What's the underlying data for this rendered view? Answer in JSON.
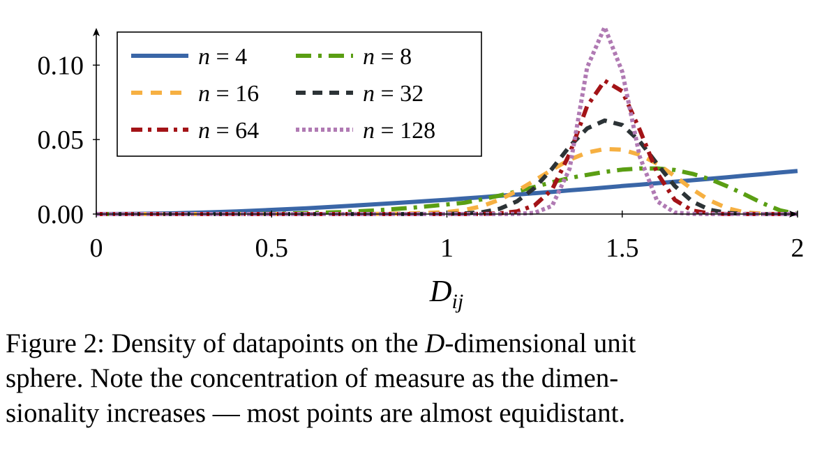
{
  "chart_data": {
    "type": "line",
    "title": "",
    "xlabel": "D",
    "xlabel_subscript": "ij",
    "ylabel": "",
    "xlim": [
      0,
      2
    ],
    "ylim": [
      0,
      0.125
    ],
    "xticks": [
      0,
      0.5,
      1,
      1.5,
      2
    ],
    "xtick_labels": [
      "0",
      "0.5",
      "1",
      "1.5",
      "2"
    ],
    "yticks": [
      0,
      0.05,
      0.1
    ],
    "ytick_labels": [
      "0.00",
      "0.05",
      "0.10"
    ],
    "grid": false,
    "legend_position": "top-left",
    "x": [
      0,
      0.1,
      0.2,
      0.3,
      0.4,
      0.5,
      0.6,
      0.7,
      0.8,
      0.9,
      1.0,
      1.05,
      1.1,
      1.15,
      1.2,
      1.25,
      1.3,
      1.35,
      1.4,
      1.45,
      1.5,
      1.55,
      1.6,
      1.65,
      1.7,
      1.75,
      1.8,
      1.85,
      1.9,
      1.95,
      2.0
    ],
    "series": [
      {
        "name": "n = 4",
        "legend_var": "n",
        "legend_val": "4",
        "color": "#3a66a7",
        "dash": "solid",
        "values": [
          0.0,
          0.0001,
          0.0004,
          0.001,
          0.0018,
          0.0028,
          0.0039,
          0.0052,
          0.0066,
          0.0081,
          0.0096,
          0.0105,
          0.0113,
          0.0122,
          0.0131,
          0.014,
          0.0149,
          0.0159,
          0.0168,
          0.0178,
          0.0188,
          0.0197,
          0.0207,
          0.0217,
          0.0227,
          0.0237,
          0.0247,
          0.0258,
          0.0268,
          0.0279,
          0.0289
        ]
      },
      {
        "name": "n = 8",
        "legend_var": "n",
        "legend_val": "8",
        "color": "#5a9e13",
        "dash": "dashdot",
        "values": [
          0.0,
          0.0,
          0.0,
          0.0,
          0.0001,
          0.0002,
          0.0006,
          0.0013,
          0.0025,
          0.0042,
          0.0064,
          0.0076,
          0.0099,
          0.0124,
          0.0152,
          0.0182,
          0.0214,
          0.0242,
          0.0263,
          0.0283,
          0.0298,
          0.0306,
          0.0306,
          0.0296,
          0.027,
          0.0234,
          0.0186,
          0.0131,
          0.0073,
          0.0025,
          0.0
        ]
      },
      {
        "name": "n = 16",
        "legend_var": "n",
        "legend_val": "16",
        "color": "#f6b042",
        "dash": "dashed",
        "values": [
          0.0,
          0.0,
          0.0,
          0.0,
          0.0,
          0.0,
          0.0,
          0.0,
          0.0001,
          0.0004,
          0.0013,
          0.0027,
          0.0053,
          0.0096,
          0.0155,
          0.0225,
          0.0298,
          0.0365,
          0.0413,
          0.0437,
          0.0432,
          0.0398,
          0.0337,
          0.0254,
          0.0166,
          0.0091,
          0.0039,
          0.0011,
          0.0002,
          0.0,
          0.0
        ]
      },
      {
        "name": "n = 32",
        "legend_var": "n",
        "legend_val": "32",
        "color": "#2c3336",
        "dash": "dashed2",
        "values": [
          0.0,
          0.0,
          0.0,
          0.0,
          0.0,
          0.0,
          0.0,
          0.0,
          0.0,
          0.0,
          0.0001,
          0.0004,
          0.0012,
          0.0035,
          0.0085,
          0.0175,
          0.0305,
          0.0455,
          0.0575,
          0.0628,
          0.0598,
          0.0488,
          0.0335,
          0.0188,
          0.0084,
          0.0028,
          0.0007,
          0.0001,
          0.0,
          0.0,
          0.0
        ]
      },
      {
        "name": "n = 64",
        "legend_var": "n",
        "legend_val": "64",
        "color": "#a31317",
        "dash": "dashdot2",
        "values": [
          0.0,
          0.0,
          0.0,
          0.0,
          0.0,
          0.0,
          0.0,
          0.0,
          0.0,
          0.0,
          0.0,
          0.0,
          0.0001,
          0.0004,
          0.0018,
          0.0058,
          0.0165,
          0.0405,
          0.0725,
          0.0895,
          0.0825,
          0.0565,
          0.0275,
          0.0095,
          0.0023,
          0.0004,
          0.0,
          0.0,
          0.0,
          0.0,
          0.0
        ]
      },
      {
        "name": "n = 128",
        "legend_var": "n",
        "legend_val": "128",
        "color": "#b07ab3",
        "dash": "dotted",
        "values": [
          0.0,
          0.0,
          0.0,
          0.0,
          0.0,
          0.0,
          0.0,
          0.0,
          0.0,
          0.0,
          0.0,
          0.0,
          0.0,
          0.0,
          0.0001,
          0.0008,
          0.0055,
          0.0305,
          0.0985,
          0.1255,
          0.0955,
          0.0385,
          0.0085,
          0.001,
          0.0001,
          0.0,
          0.0,
          0.0,
          0.0,
          0.0,
          0.0
        ]
      }
    ]
  },
  "caption": {
    "line1_prefix": "Figure 2: Density of datapoints on the ",
    "line1_var": "D",
    "line1_suffix": "-dimensional unit",
    "line2": "sphere.  Note the concentration of measure as the dimen-",
    "line3": "sionality increases — most points are almost equidistant."
  }
}
